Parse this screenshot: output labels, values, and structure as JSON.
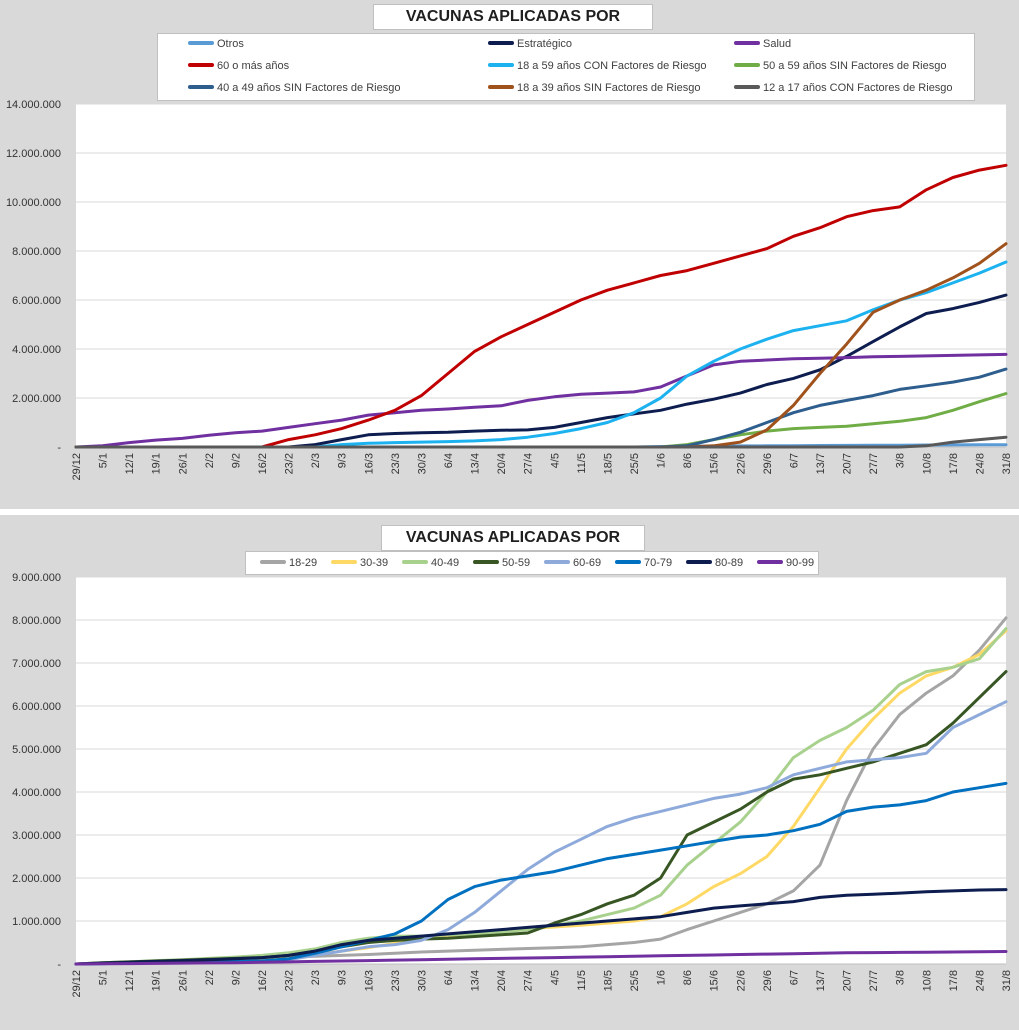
{
  "dates": [
    "29/12",
    "5/1",
    "12/1",
    "19/1",
    "26/1",
    "2/2",
    "9/2",
    "16/2",
    "23/2",
    "2/3",
    "9/3",
    "16/3",
    "23/3",
    "30/3",
    "6/4",
    "13/4",
    "20/4",
    "27/4",
    "4/5",
    "11/5",
    "18/5",
    "25/5",
    "1/6",
    "8/6",
    "15/6",
    "22/6",
    "29/6",
    "6/7",
    "13/7",
    "20/7",
    "27/7",
    "3/8",
    "10/8",
    "17/8",
    "24/8",
    "31/8"
  ],
  "chart_data": [
    {
      "id": "sector",
      "type": "line",
      "title": "VACUNAS APLICADAS POR SECTOR",
      "xlabel": "",
      "ylabel": "",
      "ylim": [
        0,
        14000000
      ],
      "yticks": [
        0,
        2000000,
        4000000,
        6000000,
        8000000,
        10000000,
        12000000,
        14000000
      ],
      "ytick_labels": [
        "-",
        "2.000.000",
        "4.000.000",
        "6.000.000",
        "8.000.000",
        "10.000.000",
        "12.000.000",
        "14.000.000"
      ],
      "grid": true,
      "legend_position": "top",
      "series": [
        {
          "name": "Otros",
          "color": "#5b9bd5",
          "values": [
            0,
            0,
            0,
            0,
            0,
            0,
            0,
            0,
            0,
            0,
            0,
            0,
            0,
            0,
            0,
            0,
            0,
            0,
            0,
            0,
            0,
            0,
            20000,
            30000,
            40000,
            45000,
            50000,
            55000,
            60000,
            65000,
            70000,
            75000,
            80000,
            85000,
            90000,
            95000
          ]
        },
        {
          "name": "Estratégico",
          "color": "#0d1d4f",
          "values": [
            0,
            0,
            0,
            0,
            0,
            0,
            0,
            0,
            0,
            100000,
            300000,
            500000,
            550000,
            580000,
            600000,
            650000,
            680000,
            700000,
            800000,
            1000000,
            1200000,
            1350000,
            1500000,
            1750000,
            1950000,
            2200000,
            2550000,
            2800000,
            3150000,
            3700000,
            4300000,
            4900000,
            5450000,
            5650000,
            5900000,
            6200000
          ]
        },
        {
          "name": "Salud",
          "color": "#7030a0",
          "values": [
            0,
            50000,
            180000,
            280000,
            350000,
            480000,
            580000,
            650000,
            800000,
            950000,
            1100000,
            1300000,
            1400000,
            1500000,
            1550000,
            1620000,
            1680000,
            1900000,
            2050000,
            2150000,
            2200000,
            2250000,
            2450000,
            2900000,
            3350000,
            3500000,
            3550000,
            3600000,
            3620000,
            3650000,
            3680000,
            3700000,
            3720000,
            3740000,
            3760000,
            3780000
          ]
        },
        {
          "name": "60 o más años",
          "color": "#c00000",
          "values": [
            0,
            0,
            0,
            0,
            0,
            0,
            0,
            0,
            300000,
            500000,
            750000,
            1100000,
            1500000,
            2100000,
            3000000,
            3900000,
            4500000,
            5000000,
            5500000,
            6000000,
            6400000,
            6700000,
            7000000,
            7200000,
            7500000,
            7800000,
            8100000,
            8600000,
            8950000,
            9400000,
            9650000,
            9800000,
            10500000,
            11000000,
            11300000,
            11500000
          ]
        },
        {
          "name": "18 a 59 años CON Factores de Riesgo",
          "color": "#1cb2f0",
          "values": [
            0,
            0,
            0,
            0,
            0,
            0,
            0,
            0,
            0,
            0,
            100000,
            150000,
            180000,
            200000,
            220000,
            250000,
            300000,
            400000,
            550000,
            750000,
            1000000,
            1400000,
            2000000,
            2900000,
            3500000,
            4000000,
            4400000,
            4750000,
            4950000,
            5150000,
            5600000,
            6000000,
            6300000,
            6700000,
            7100000,
            7550000
          ]
        },
        {
          "name": "50 a 59 años SIN Factores de Riesgo",
          "color": "#70ad47",
          "values": [
            0,
            0,
            0,
            0,
            0,
            0,
            0,
            0,
            0,
            0,
            0,
            0,
            0,
            0,
            0,
            0,
            0,
            0,
            0,
            0,
            0,
            0,
            0,
            100000,
            300000,
            500000,
            650000,
            750000,
            800000,
            850000,
            950000,
            1050000,
            1200000,
            1500000,
            1850000,
            2180000
          ]
        },
        {
          "name": "40 a 49 años SIN Factores de Riesgo",
          "color": "#2e5e8e",
          "values": [
            0,
            0,
            0,
            0,
            0,
            0,
            0,
            0,
            0,
            0,
            0,
            0,
            0,
            0,
            0,
            0,
            0,
            0,
            0,
            0,
            0,
            0,
            0,
            50000,
            300000,
            600000,
            1000000,
            1400000,
            1700000,
            1900000,
            2100000,
            2350000,
            2500000,
            2650000,
            2850000,
            3180000
          ]
        },
        {
          "name": "18 a 39 años SIN Factores de Riesgo",
          "color": "#a0521c",
          "values": [
            0,
            0,
            0,
            0,
            0,
            0,
            0,
            0,
            0,
            0,
            0,
            0,
            0,
            0,
            0,
            0,
            0,
            0,
            0,
            0,
            0,
            0,
            0,
            0,
            50000,
            200000,
            700000,
            1700000,
            3000000,
            4200000,
            5500000,
            6000000,
            6400000,
            6900000,
            7500000,
            8300000
          ]
        },
        {
          "name": "12 a 17 años CON Factores de Riesgo",
          "color": "#595959",
          "values": [
            0,
            0,
            0,
            0,
            0,
            0,
            0,
            0,
            0,
            0,
            0,
            0,
            0,
            0,
            0,
            0,
            0,
            0,
            0,
            0,
            0,
            0,
            0,
            0,
            0,
            0,
            0,
            0,
            0,
            0,
            0,
            0,
            50000,
            200000,
            300000,
            400000
          ]
        }
      ]
    },
    {
      "id": "edad",
      "type": "line",
      "title": "VACUNAS APLICADAS POR EDAD",
      "xlabel": "",
      "ylabel": "",
      "ylim": [
        0,
        9000000
      ],
      "yticks": [
        0,
        1000000,
        2000000,
        3000000,
        4000000,
        5000000,
        6000000,
        7000000,
        8000000,
        9000000
      ],
      "ytick_labels": [
        "-",
        "1.000.000",
        "2.000.000",
        "3.000.000",
        "4.000.000",
        "5.000.000",
        "6.000.000",
        "7.000.000",
        "8.000.000",
        "9.000.000"
      ],
      "grid": true,
      "legend_position": "top",
      "series": [
        {
          "name": "18-29",
          "color": "#a5a5a5",
          "values": [
            0,
            20000,
            40000,
            60000,
            80000,
            100000,
            120000,
            140000,
            160000,
            180000,
            200000,
            220000,
            250000,
            280000,
            300000,
            320000,
            340000,
            360000,
            380000,
            400000,
            450000,
            500000,
            580000,
            800000,
            1000000,
            1200000,
            1400000,
            1700000,
            2300000,
            3800000,
            5000000,
            5800000,
            6300000,
            6700000,
            7300000,
            8050000
          ]
        },
        {
          "name": "30-39",
          "color": "#ffd966",
          "values": [
            0,
            20000,
            40000,
            60000,
            80000,
            100000,
            120000,
            150000,
            180000,
            220000,
            300000,
            380000,
            480000,
            580000,
            650000,
            720000,
            780000,
            820000,
            860000,
            900000,
            950000,
            1000000,
            1100000,
            1400000,
            1800000,
            2100000,
            2500000,
            3200000,
            4100000,
            5000000,
            5700000,
            6300000,
            6700000,
            6900000,
            7200000,
            7750000
          ]
        },
        {
          "name": "40-49",
          "color": "#a9d18e",
          "values": [
            0,
            30000,
            50000,
            80000,
            100000,
            130000,
            160000,
            200000,
            260000,
            350000,
            500000,
            600000,
            650000,
            650000,
            680000,
            700000,
            750000,
            800000,
            900000,
            1000000,
            1150000,
            1300000,
            1600000,
            2300000,
            2800000,
            3300000,
            4000000,
            4800000,
            5200000,
            5500000,
            5900000,
            6500000,
            6800000,
            6900000,
            7100000,
            7800000
          ]
        },
        {
          "name": "50-59",
          "color": "#375623",
          "values": [
            0,
            30000,
            50000,
            70000,
            90000,
            110000,
            130000,
            150000,
            200000,
            300000,
            400000,
            500000,
            550000,
            580000,
            600000,
            640000,
            680000,
            720000,
            950000,
            1150000,
            1400000,
            1600000,
            2000000,
            3000000,
            3300000,
            3600000,
            4000000,
            4300000,
            4400000,
            4550000,
            4700000,
            4900000,
            5100000,
            5600000,
            6200000,
            6800000
          ]
        },
        {
          "name": "60-69",
          "color": "#8eaadb",
          "values": [
            0,
            10000,
            20000,
            30000,
            40000,
            50000,
            60000,
            70000,
            100000,
            200000,
            300000,
            400000,
            450000,
            550000,
            800000,
            1200000,
            1700000,
            2200000,
            2600000,
            2900000,
            3200000,
            3400000,
            3550000,
            3700000,
            3850000,
            3950000,
            4100000,
            4400000,
            4550000,
            4700000,
            4750000,
            4800000,
            4900000,
            5500000,
            5800000,
            6100000
          ]
        },
        {
          "name": "70-79",
          "color": "#0070c0",
          "values": [
            0,
            10000,
            20000,
            30000,
            40000,
            50000,
            60000,
            70000,
            120000,
            250000,
            400000,
            550000,
            700000,
            1000000,
            1500000,
            1800000,
            1950000,
            2050000,
            2150000,
            2300000,
            2450000,
            2550000,
            2650000,
            2750000,
            2850000,
            2950000,
            3000000,
            3100000,
            3250000,
            3550000,
            3650000,
            3700000,
            3800000,
            4000000,
            4100000,
            4200000
          ]
        },
        {
          "name": "80-89",
          "color": "#0d1d4f",
          "values": [
            0,
            20000,
            40000,
            60000,
            80000,
            100000,
            120000,
            150000,
            200000,
            300000,
            450000,
            550000,
            600000,
            650000,
            700000,
            750000,
            800000,
            850000,
            900000,
            950000,
            1000000,
            1050000,
            1100000,
            1200000,
            1300000,
            1350000,
            1400000,
            1450000,
            1550000,
            1600000,
            1620000,
            1650000,
            1680000,
            1700000,
            1720000,
            1730000
          ]
        },
        {
          "name": "90-99",
          "color": "#7030a0",
          "values": [
            0,
            5000,
            10000,
            15000,
            20000,
            25000,
            30000,
            40000,
            50000,
            60000,
            70000,
            80000,
            90000,
            100000,
            110000,
            120000,
            130000,
            140000,
            150000,
            160000,
            170000,
            180000,
            190000,
            200000,
            210000,
            220000,
            230000,
            240000,
            250000,
            260000,
            265000,
            270000,
            275000,
            280000,
            285000,
            290000
          ]
        }
      ]
    }
  ]
}
